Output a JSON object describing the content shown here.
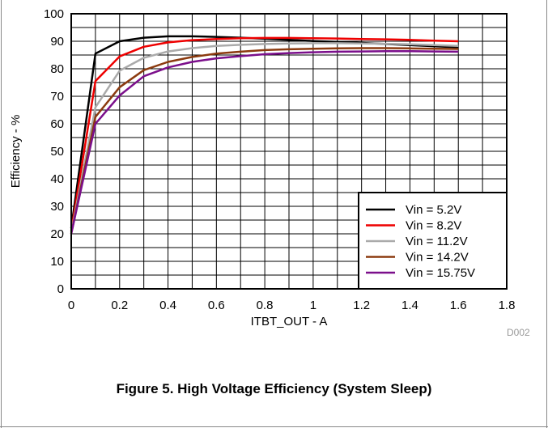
{
  "chart_data": {
    "type": "line",
    "xlabel": "ITBT_OUT - A",
    "ylabel": "Efficiency - %",
    "xlim": [
      0,
      1.8
    ],
    "ylim": [
      0,
      100
    ],
    "xticks": [
      "0",
      "0.2",
      "0.4",
      "0.6",
      "0.8",
      "1",
      "1.2",
      "1.4",
      "1.6",
      "1.8"
    ],
    "yticks": [
      "0",
      "10",
      "20",
      "30",
      "40",
      "50",
      "60",
      "70",
      "80",
      "90",
      "100"
    ],
    "grid": true,
    "legend_position": "bottom-right",
    "series": [
      {
        "name": "Vin = 5.2V",
        "color": "#000000",
        "x": [
          0,
          0.1,
          0.2,
          0.3,
          0.4,
          0.5,
          0.6,
          0.7,
          0.8,
          0.9,
          1.0,
          1.1,
          1.2,
          1.3,
          1.4,
          1.5,
          1.6
        ],
        "y": [
          22,
          85.5,
          90,
          91.3,
          91.8,
          91.8,
          91.6,
          91.3,
          90.9,
          90.5,
          90.1,
          89.8,
          89.4,
          89.0,
          88.6,
          88.2,
          87.8
        ]
      },
      {
        "name": "Vin = 8.2V",
        "color": "#ee0000",
        "x": [
          0,
          0.1,
          0.2,
          0.3,
          0.4,
          0.5,
          0.6,
          0.7,
          0.8,
          0.9,
          1.0,
          1.1,
          1.2,
          1.3,
          1.4,
          1.5,
          1.6
        ],
        "y": [
          21,
          75.5,
          84.5,
          88,
          89.6,
          90.4,
          90.8,
          91.1,
          91.2,
          91.2,
          91.1,
          91.0,
          90.8,
          90.7,
          90.5,
          90.2,
          90.0
        ]
      },
      {
        "name": "Vin = 11.2V",
        "color": "#aaaaaa",
        "x": [
          0,
          0.1,
          0.2,
          0.3,
          0.4,
          0.5,
          0.6,
          0.7,
          0.8,
          0.9,
          1.0,
          1.1,
          1.2,
          1.3,
          1.4,
          1.5,
          1.6
        ],
        "y": [
          20.5,
          66,
          79.3,
          84,
          86.3,
          87.5,
          88.3,
          88.7,
          89.0,
          89.2,
          89.3,
          89.3,
          89.2,
          89.1,
          88.9,
          88.6,
          88.3
        ]
      },
      {
        "name": "Vin = 14.2V",
        "color": "#8b3a0f",
        "x": [
          0,
          0.1,
          0.2,
          0.3,
          0.4,
          0.5,
          0.6,
          0.7,
          0.8,
          0.9,
          1.0,
          1.1,
          1.2,
          1.3,
          1.4,
          1.5,
          1.6
        ],
        "y": [
          20,
          62.5,
          73.3,
          79.5,
          82.5,
          84.3,
          85.5,
          86.2,
          86.8,
          87.1,
          87.3,
          87.4,
          87.5,
          87.5,
          87.4,
          87.3,
          87.2
        ]
      },
      {
        "name": "Vin = 15.75V",
        "color": "#7b0f8b",
        "x": [
          0,
          0.1,
          0.2,
          0.3,
          0.4,
          0.5,
          0.6,
          0.7,
          0.8,
          0.9,
          1.0,
          1.1,
          1.2,
          1.3,
          1.4,
          1.5,
          1.6
        ],
        "y": [
          20,
          60,
          70.3,
          77.3,
          80.5,
          82.5,
          83.8,
          84.6,
          85.3,
          85.7,
          86.0,
          86.2,
          86.3,
          86.4,
          86.4,
          86.3,
          86.2
        ]
      }
    ]
  },
  "figure_code": "D002",
  "caption": "Figure 5. High Voltage Efficiency (System Sleep)"
}
